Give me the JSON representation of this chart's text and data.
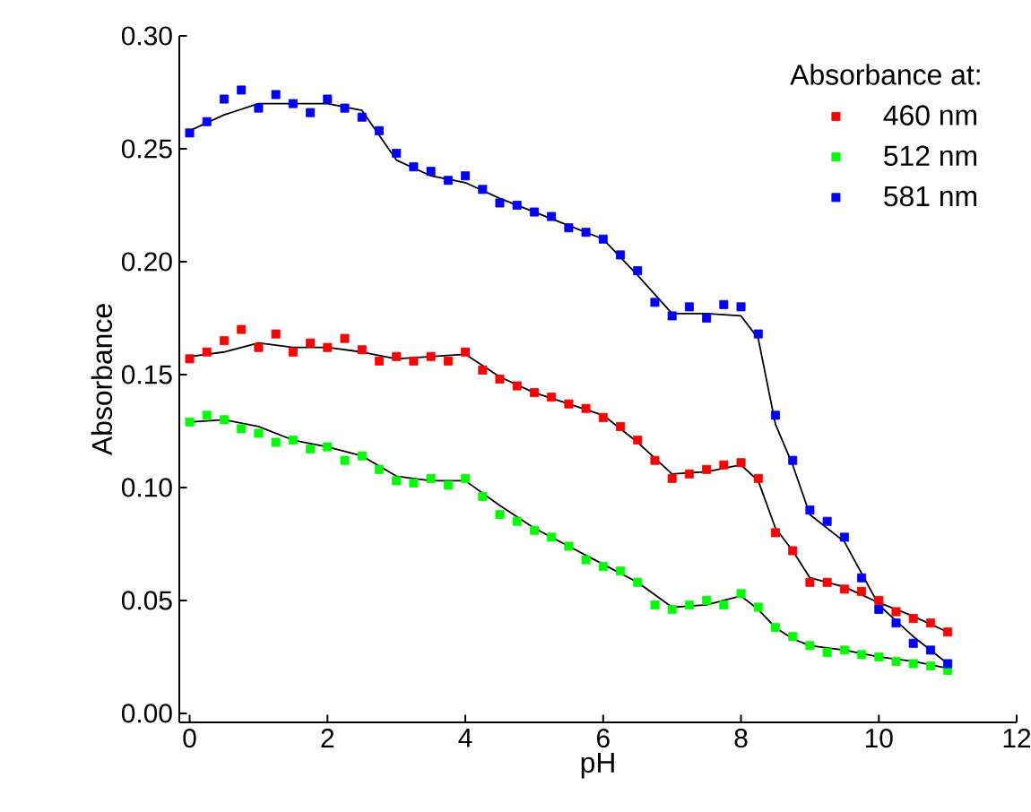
{
  "chart_data": {
    "type": "scatter",
    "xlabel": "pH",
    "ylabel": "Absorbance",
    "legend_title": "Absorbance at:",
    "legend": "top right",
    "grid": false,
    "marker": "square",
    "xlim": [
      -0.15,
      12
    ],
    "ylim": [
      -0.004,
      0.3
    ],
    "xticks": [
      0,
      2,
      4,
      6,
      8,
      10,
      12
    ],
    "yticks": [
      {
        "value": 0,
        "label": "0.00"
      },
      {
        "value": 0.05,
        "label": "0.05"
      },
      {
        "value": 0.1,
        "label": "0.10"
      },
      {
        "value": 0.15,
        "label": "0.15"
      },
      {
        "value": 0.2,
        "label": "0.20"
      },
      {
        "value": 0.25,
        "label": "0.25"
      },
      {
        "value": 0.3,
        "label": "0.30"
      }
    ],
    "series": [
      {
        "name": "460 nm",
        "color": "#ff0000",
        "x": [
          0,
          0.25,
          0.5,
          0.75,
          1,
          1.25,
          1.5,
          1.75,
          2,
          2.25,
          2.5,
          2.75,
          3,
          3.25,
          3.5,
          3.75,
          4,
          4.25,
          4.5,
          4.75,
          5,
          5.25,
          5.5,
          5.75,
          6,
          6.25,
          6.5,
          6.75,
          7,
          7.25,
          7.5,
          7.75,
          8,
          8.25,
          8.5,
          8.75,
          9,
          9.25,
          9.5,
          9.75,
          10,
          10.25,
          10.5,
          10.75,
          11
        ],
        "values": [
          0.157,
          0.16,
          0.165,
          0.17,
          0.162,
          0.168,
          0.16,
          0.164,
          0.162,
          0.166,
          0.161,
          0.156,
          0.158,
          0.156,
          0.158,
          0.156,
          0.16,
          0.152,
          0.148,
          0.145,
          0.142,
          0.14,
          0.137,
          0.135,
          0.131,
          0.127,
          0.121,
          0.112,
          0.104,
          0.106,
          0.108,
          0.11,
          0.111,
          0.104,
          0.08,
          0.072,
          0.058,
          0.058,
          0.055,
          0.054,
          0.05,
          0.045,
          0.042,
          0.04,
          0.036
        ]
      },
      {
        "name": "512 nm",
        "color": "#00ff00",
        "x": [
          0,
          0.25,
          0.5,
          0.75,
          1,
          1.25,
          1.5,
          1.75,
          2,
          2.25,
          2.5,
          2.75,
          3,
          3.25,
          3.5,
          3.75,
          4,
          4.25,
          4.5,
          4.75,
          5,
          5.25,
          5.5,
          5.75,
          6,
          6.25,
          6.5,
          6.75,
          7,
          7.25,
          7.5,
          7.75,
          8,
          8.25,
          8.5,
          8.75,
          9,
          9.25,
          9.5,
          9.75,
          10,
          10.25,
          10.5,
          10.75,
          11
        ],
        "values": [
          0.129,
          0.132,
          0.13,
          0.126,
          0.124,
          0.12,
          0.121,
          0.117,
          0.118,
          0.112,
          0.114,
          0.108,
          0.103,
          0.102,
          0.104,
          0.101,
          0.104,
          0.096,
          0.088,
          0.085,
          0.081,
          0.078,
          0.074,
          0.068,
          0.065,
          0.063,
          0.058,
          0.048,
          0.046,
          0.048,
          0.05,
          0.048,
          0.053,
          0.047,
          0.038,
          0.034,
          0.03,
          0.027,
          0.028,
          0.026,
          0.025,
          0.023,
          0.022,
          0.021,
          0.019
        ]
      },
      {
        "name": "581 nm",
        "color": "#0000ff",
        "x": [
          0,
          0.25,
          0.5,
          0.75,
          1,
          1.25,
          1.5,
          1.75,
          2,
          2.25,
          2.5,
          2.75,
          3,
          3.25,
          3.5,
          3.75,
          4,
          4.25,
          4.5,
          4.75,
          5,
          5.25,
          5.5,
          5.75,
          6,
          6.25,
          6.5,
          6.75,
          7,
          7.25,
          7.5,
          7.75,
          8,
          8.25,
          8.5,
          8.75,
          9,
          9.25,
          9.5,
          9.75,
          10,
          10.25,
          10.5,
          10.75,
          11
        ],
        "values": [
          0.257,
          0.262,
          0.272,
          0.276,
          0.268,
          0.274,
          0.27,
          0.266,
          0.272,
          0.268,
          0.264,
          0.258,
          0.248,
          0.242,
          0.24,
          0.236,
          0.238,
          0.232,
          0.226,
          0.225,
          0.222,
          0.22,
          0.215,
          0.213,
          0.21,
          0.203,
          0.196,
          0.182,
          0.176,
          0.18,
          0.175,
          0.181,
          0.18,
          0.168,
          0.132,
          0.112,
          0.09,
          0.085,
          0.078,
          0.06,
          0.046,
          0.04,
          0.031,
          0.028,
          0.022
        ]
      },
      {
        "type": "line",
        "marker": "none",
        "color": "#000000",
        "x": [
          0,
          0.5,
          1,
          1.5,
          2,
          2.5,
          3,
          3.5,
          4,
          4.5,
          5,
          5.5,
          6,
          6.5,
          7,
          7.5,
          8,
          8.25,
          8.5,
          8.75,
          9,
          9.5,
          10,
          10.5,
          11
        ],
        "values": [
          0.158,
          0.16,
          0.164,
          0.162,
          0.162,
          0.16,
          0.157,
          0.158,
          0.159,
          0.149,
          0.142,
          0.137,
          0.132,
          0.12,
          0.106,
          0.107,
          0.11,
          0.103,
          0.082,
          0.072,
          0.06,
          0.056,
          0.049,
          0.043,
          0.036
        ]
      },
      {
        "type": "line",
        "marker": "none",
        "color": "#000000",
        "x": [
          0,
          0.5,
          1,
          1.5,
          2,
          2.5,
          3,
          3.5,
          4,
          4.5,
          5,
          5.5,
          6,
          6.5,
          7,
          7.5,
          8,
          8.25,
          8.5,
          8.75,
          9,
          9.5,
          10,
          10.5,
          11
        ],
        "values": [
          0.129,
          0.13,
          0.127,
          0.121,
          0.118,
          0.114,
          0.105,
          0.103,
          0.103,
          0.092,
          0.082,
          0.074,
          0.066,
          0.058,
          0.047,
          0.048,
          0.052,
          0.046,
          0.038,
          0.033,
          0.03,
          0.028,
          0.025,
          0.023,
          0.02
        ]
      },
      {
        "type": "line",
        "marker": "none",
        "color": "#000000",
        "x": [
          0,
          0.5,
          1,
          1.5,
          2,
          2.5,
          3,
          3.5,
          4,
          4.5,
          5,
          5.5,
          6,
          6.5,
          7,
          7.5,
          8,
          8.25,
          8.5,
          8.75,
          9,
          9.5,
          10,
          10.5,
          11
        ],
        "values": [
          0.258,
          0.265,
          0.27,
          0.27,
          0.27,
          0.267,
          0.245,
          0.238,
          0.235,
          0.228,
          0.222,
          0.216,
          0.21,
          0.194,
          0.177,
          0.177,
          0.176,
          0.166,
          0.128,
          0.11,
          0.088,
          0.076,
          0.048,
          0.034,
          0.022
        ]
      }
    ]
  }
}
